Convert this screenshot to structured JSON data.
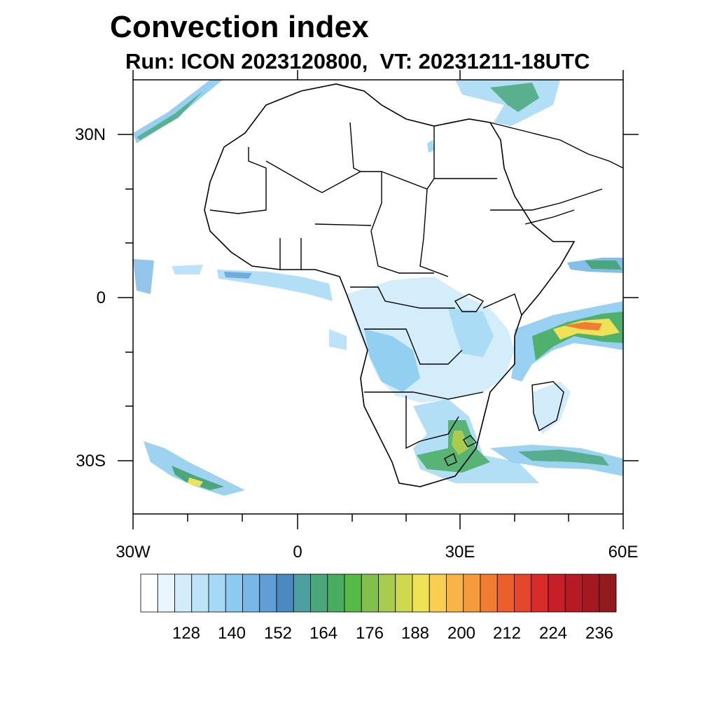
{
  "title": "Convection index",
  "subtitle": "Run: ICON 2023120800,  VT: 20231211-18UTC",
  "map": {
    "lon_range": [
      -30,
      60
    ],
    "lat_range": [
      -40,
      40
    ],
    "lat_labels": [
      "30N",
      "0",
      "30S"
    ],
    "lon_labels": [
      "30W",
      "0",
      "30E",
      "60E"
    ]
  },
  "colorbar": {
    "labels": [
      "128",
      "140",
      "152",
      "164",
      "176",
      "188",
      "200",
      "212",
      "224",
      "236"
    ],
    "colors": [
      "#ffffff",
      "#eaf6fd",
      "#d2ecfa",
      "#bde3f8",
      "#a5d9f5",
      "#8ccbef",
      "#78b7e6",
      "#5f9fd6",
      "#4b89c2",
      "#4e9fa0",
      "#4aa77c",
      "#48ad5e",
      "#57b947",
      "#83c04b",
      "#a9cc4e",
      "#cfd94f",
      "#f0e257",
      "#f9cd52",
      "#f8b545",
      "#f59b3c",
      "#f17d33",
      "#ec5f2d",
      "#e3462b",
      "#d92c2a",
      "#c71f28",
      "#b51a25",
      "#a41921",
      "#911b1d"
    ]
  }
}
